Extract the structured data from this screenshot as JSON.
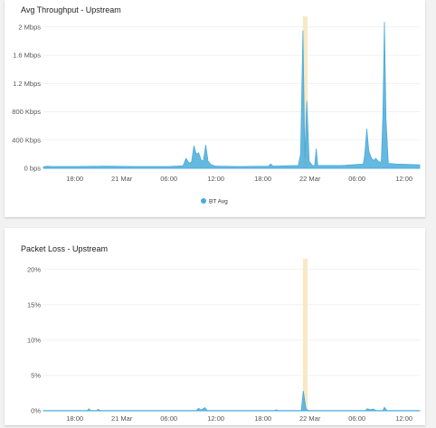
{
  "panels": {
    "throughput": {
      "title": "Avg Throughput - Upstream"
    },
    "packet_loss": {
      "title": "Packet Loss - Upstream"
    }
  },
  "colors": {
    "series": "#4aabdb",
    "highlight": "#f9e8c4",
    "grid": "#e8e8e8"
  },
  "chart_data": [
    {
      "type": "area",
      "title": "Avg Throughput - Upstream",
      "xlabel": "",
      "ylabel": "",
      "y_ticks": [
        "0 bps",
        "400 Kbps",
        "800 Kbps",
        "1.2 Mbps",
        "1.6 Mbps",
        "2 Mbps"
      ],
      "y_tick_values": [
        0,
        400,
        800,
        1200,
        1600,
        2000
      ],
      "ylim": [
        0,
        2100
      ],
      "y_unit": "Kbps",
      "xlim": [
        0,
        48
      ],
      "x_unit": "hours",
      "x_ticks": [
        {
          "label": "18:00",
          "x": 4
        },
        {
          "label": "21 Mar",
          "x": 10
        },
        {
          "label": "06:00",
          "x": 16
        },
        {
          "label": "12:00",
          "x": 22
        },
        {
          "label": "18:00",
          "x": 28
        },
        {
          "label": "22 Mar",
          "x": 34
        },
        {
          "label": "06:00",
          "x": 40
        },
        {
          "label": "12:00",
          "x": 46
        }
      ],
      "highlight_range": [
        33.1,
        33.7
      ],
      "legend": [
        "BT Avg"
      ],
      "legend_position": "bottom-center",
      "series": [
        {
          "name": "BT Avg",
          "points": [
            [
              0,
              20
            ],
            [
              0.5,
              30
            ],
            [
              1,
              25
            ],
            [
              4,
              25
            ],
            [
              8,
              30
            ],
            [
              12,
              25
            ],
            [
              16,
              25
            ],
            [
              17.8,
              35
            ],
            [
              18.2,
              140
            ],
            [
              18.6,
              70
            ],
            [
              18.9,
              90
            ],
            [
              19.2,
              320
            ],
            [
              19.5,
              200
            ],
            [
              19.8,
              220
            ],
            [
              20.1,
              120
            ],
            [
              20.4,
              100
            ],
            [
              20.7,
              330
            ],
            [
              21,
              100
            ],
            [
              21.4,
              50
            ],
            [
              22,
              30
            ],
            [
              25,
              25
            ],
            [
              28.7,
              30
            ],
            [
              29.0,
              60
            ],
            [
              29.3,
              30
            ],
            [
              32.5,
              40
            ],
            [
              32.8,
              200
            ],
            [
              33.1,
              1950
            ],
            [
              33.35,
              150
            ],
            [
              33.6,
              950
            ],
            [
              33.9,
              100
            ],
            [
              34.3,
              40
            ],
            [
              34.6,
              40
            ],
            [
              34.8,
              280
            ],
            [
              35.0,
              40
            ],
            [
              38,
              40
            ],
            [
              40.8,
              60
            ],
            [
              41.0,
              200
            ],
            [
              41.25,
              560
            ],
            [
              41.5,
              250
            ],
            [
              41.8,
              150
            ],
            [
              42.1,
              110
            ],
            [
              42.4,
              140
            ],
            [
              42.8,
              90
            ],
            [
              43.1,
              90
            ],
            [
              43.3,
              750
            ],
            [
              43.5,
              2070
            ],
            [
              43.7,
              700
            ],
            [
              44.0,
              70
            ],
            [
              45,
              60
            ],
            [
              48,
              50
            ]
          ]
        }
      ]
    },
    {
      "type": "area",
      "title": "Packet Loss - Upstream",
      "xlabel": "",
      "ylabel": "",
      "y_ticks": [
        "0%",
        "5%",
        "10%",
        "15%",
        "20%"
      ],
      "y_tick_values": [
        0,
        5,
        10,
        15,
        20
      ],
      "ylim": [
        0,
        21
      ],
      "y_unit": "%",
      "xlim": [
        0,
        48
      ],
      "x_unit": "hours",
      "x_ticks": [
        {
          "label": "18:00",
          "x": 4
        },
        {
          "label": "21 Mar",
          "x": 10
        },
        {
          "label": "06:00",
          "x": 16
        },
        {
          "label": "12:00",
          "x": 22
        },
        {
          "label": "18:00",
          "x": 28
        },
        {
          "label": "22 Mar",
          "x": 34
        },
        {
          "label": "06:00",
          "x": 40
        },
        {
          "label": "12:00",
          "x": 46
        }
      ],
      "highlight_range": [
        33.1,
        33.7
      ],
      "series": [
        {
          "name": "BT Avg",
          "points": [
            [
              0,
              0.05
            ],
            [
              5.6,
              0.05
            ],
            [
              5.8,
              0.3
            ],
            [
              6.0,
              0.05
            ],
            [
              6.8,
              0.05
            ],
            [
              7.0,
              0.2
            ],
            [
              7.2,
              0.05
            ],
            [
              19.5,
              0.05
            ],
            [
              19.8,
              0.35
            ],
            [
              20.1,
              0.1
            ],
            [
              20.6,
              0.45
            ],
            [
              20.9,
              0.05
            ],
            [
              24,
              0.05
            ],
            [
              29.5,
              0.05
            ],
            [
              29.7,
              0.15
            ],
            [
              29.9,
              0.05
            ],
            [
              32.9,
              0.05
            ],
            [
              33.15,
              2.8
            ],
            [
              33.5,
              0.3
            ],
            [
              33.8,
              0.05
            ],
            [
              41.1,
              0.05
            ],
            [
              41.3,
              0.3
            ],
            [
              41.7,
              0.15
            ],
            [
              42.1,
              0.25
            ],
            [
              42.4,
              0.05
            ],
            [
              43.3,
              0.05
            ],
            [
              43.5,
              0.5
            ],
            [
              43.8,
              0.05
            ],
            [
              48,
              0.05
            ]
          ]
        }
      ]
    }
  ]
}
